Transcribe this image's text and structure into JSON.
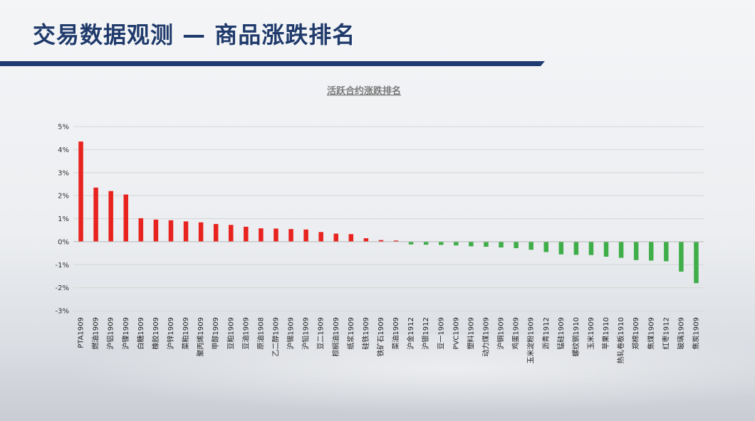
{
  "slide": {
    "title": "交易数据观测 — 商品涨跌排名"
  },
  "chart_data": {
    "type": "bar",
    "title": "活跃合约涨跌排名",
    "xlabel": "",
    "ylabel": "",
    "ylim": [
      -3,
      5
    ],
    "yticks": [
      "5%",
      "4%",
      "3%",
      "2%",
      "1%",
      "0%",
      "-1%",
      "-2%",
      "-3%"
    ],
    "grid": true,
    "colors": {
      "positive": "#e8231f",
      "negative": "#3fae49"
    },
    "categories": [
      "PTA1909",
      "燃油1909",
      "沪铝1909",
      "沪镍1909",
      "白糖1909",
      "橡胶1909",
      "沪锌1909",
      "菜粕1909",
      "聚丙烯1909",
      "甲醇1909",
      "豆粕1909",
      "豆油1909",
      "原油1908",
      "乙二醇1909",
      "沪锡1909",
      "沪铅1909",
      "豆二1909",
      "棕榈油1909",
      "纸浆1909",
      "硅铁1909",
      "铁矿石1909",
      "菜油1909",
      "沪金1912",
      "沪银1912",
      "豆一1909",
      "PVC1909",
      "塑料1909",
      "动力煤1909",
      "沪铜1909",
      "鸡蛋1909",
      "玉米淀粉1909",
      "沥青1912",
      "锰硅1909",
      "螺纹钢1910",
      "玉米1909",
      "苹果1910",
      "热轧卷板1910",
      "郑棉1909",
      "焦煤1909",
      "红枣1912",
      "玻璃1909",
      "焦炭1909"
    ],
    "values": [
      4.35,
      2.35,
      2.2,
      2.05,
      1.02,
      0.96,
      0.93,
      0.88,
      0.84,
      0.77,
      0.73,
      0.65,
      0.58,
      0.57,
      0.55,
      0.53,
      0.42,
      0.35,
      0.33,
      0.15,
      0.07,
      0.05,
      -0.12,
      -0.13,
      -0.14,
      -0.16,
      -0.2,
      -0.22,
      -0.25,
      -0.28,
      -0.35,
      -0.45,
      -0.55,
      -0.57,
      -0.58,
      -0.65,
      -0.7,
      -0.8,
      -0.82,
      -0.85,
      -1.3,
      -1.8
    ]
  }
}
